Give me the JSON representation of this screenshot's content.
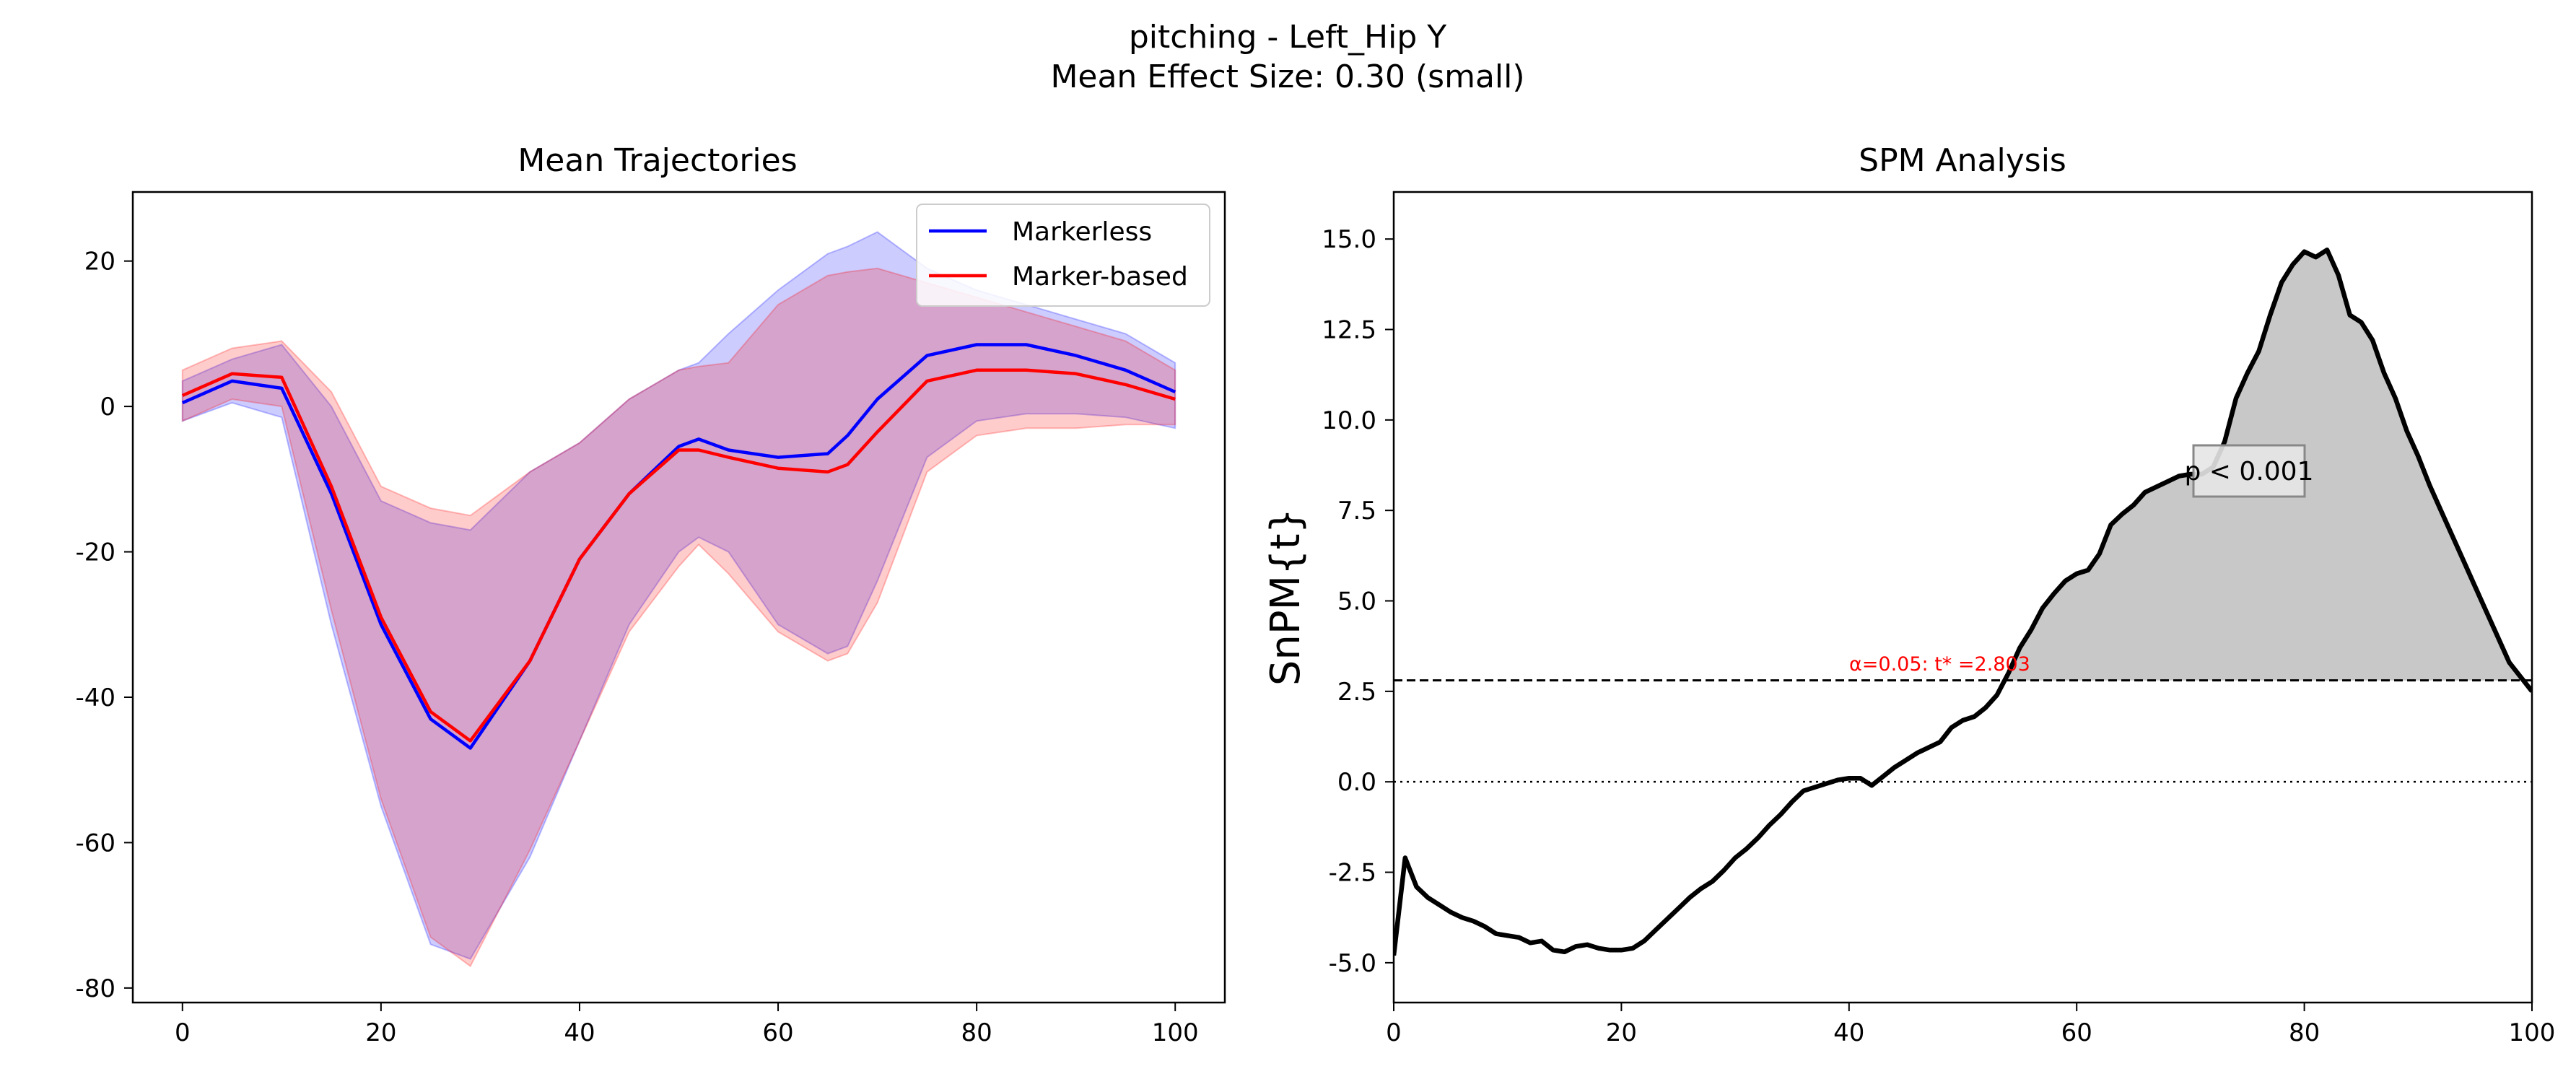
{
  "figure": {
    "suptitle_line1": "pitching - Left_Hip Y",
    "suptitle_line2": "Mean Effect Size: 0.30 (small)"
  },
  "chart_data": [
    {
      "type": "line",
      "title": "Mean Trajectories",
      "xlabel": "",
      "ylabel": "",
      "xlim": [
        -5,
        105
      ],
      "ylim": [
        -82,
        29.5
      ],
      "xticks": [
        0,
        20,
        40,
        60,
        80,
        100
      ],
      "yticks": [
        -80,
        -60,
        -40,
        -20,
        0,
        20
      ],
      "grid": false,
      "legend_position": "top-right",
      "x": [
        0,
        5,
        10,
        15,
        20,
        25,
        29,
        35,
        40,
        45,
        50,
        52,
        55,
        60,
        65,
        67,
        70,
        75,
        80,
        85,
        90,
        95,
        100
      ],
      "series": [
        {
          "name": "Markerless",
          "color": "#0000ff",
          "values": [
            0.5,
            3.5,
            2.5,
            -12,
            -30,
            -43,
            -47,
            -35,
            -21,
            -12,
            -5.5,
            -4.5,
            -6,
            -7,
            -6.5,
            -4,
            1,
            7,
            8.5,
            8.5,
            7,
            5,
            2
          ],
          "band_upper": [
            3.5,
            6.5,
            8.5,
            0,
            -13,
            -16,
            -17,
            -9,
            -5,
            1,
            5,
            6,
            10,
            16,
            21,
            22,
            24,
            19,
            16,
            14,
            12,
            10,
            6
          ],
          "band_lower": [
            -2,
            0.5,
            -1.5,
            -30,
            -55,
            -74,
            -76,
            -62,
            -46,
            -30,
            -20,
            -18,
            -20,
            -30,
            -34,
            -33,
            -24,
            -7,
            -2,
            -1,
            -1,
            -1.5,
            -3
          ]
        },
        {
          "name": "Marker-based",
          "color": "#ff0000",
          "values": [
            1.5,
            4.5,
            4,
            -11,
            -29,
            -42,
            -46,
            -35,
            -21,
            -12,
            -6,
            -6,
            -7,
            -8.5,
            -9,
            -8,
            -3.5,
            3.5,
            5,
            5,
            4.5,
            3,
            1
          ],
          "band_upper": [
            5,
            8,
            9,
            2,
            -11,
            -14,
            -15,
            -9,
            -5,
            1,
            5,
            5.5,
            6,
            14,
            18,
            18.5,
            19,
            17,
            15,
            13,
            11,
            9,
            5
          ],
          "band_lower": [
            -2,
            1,
            0,
            -28,
            -54,
            -73,
            -77,
            -61,
            -46,
            -31,
            -22,
            -19,
            -23,
            -31,
            -35,
            -34,
            -27,
            -9,
            -4,
            -3,
            -3,
            -2.5,
            -2.5
          ]
        }
      ]
    },
    {
      "type": "line",
      "title": "SPM Analysis",
      "xlabel": "",
      "ylabel": "SnPM{t}",
      "xlim": [
        0,
        100
      ],
      "ylim": [
        -6.1,
        16.3
      ],
      "xticks": [
        0,
        20,
        40,
        60,
        80,
        100
      ],
      "yticks": [
        -5.0,
        -2.5,
        0.0,
        2.5,
        5.0,
        7.5,
        10.0,
        12.5,
        15.0
      ],
      "grid": false,
      "x": [
        0,
        1,
        2,
        3,
        4,
        5,
        6,
        7,
        8,
        9,
        10,
        11,
        12,
        13,
        14,
        15,
        16,
        17,
        18,
        19,
        20,
        21,
        22,
        23,
        24,
        25,
        26,
        27,
        28,
        29,
        30,
        31,
        32,
        33,
        34,
        35,
        36,
        37,
        38,
        39,
        40,
        41,
        42,
        43,
        44,
        45,
        46,
        47,
        48,
        49,
        50,
        51,
        52,
        53,
        54,
        55,
        56,
        57,
        58,
        59,
        60,
        61,
        62,
        63,
        64,
        65,
        66,
        67,
        68,
        69,
        70,
        71,
        72,
        73,
        74,
        75,
        76,
        77,
        78,
        79,
        80,
        81,
        82,
        83,
        84,
        85,
        86,
        87,
        88,
        89,
        90,
        91,
        92,
        93,
        94,
        95,
        96,
        97,
        98,
        99,
        100
      ],
      "series": [
        {
          "name": "",
          "color": "#000000",
          "values": [
            -4.8,
            -2.1,
            -2.9,
            -3.2,
            -3.4,
            -3.6,
            -3.75,
            -3.85,
            -4.0,
            -4.2,
            -4.25,
            -4.3,
            -4.45,
            -4.4,
            -4.65,
            -4.7,
            -4.55,
            -4.5,
            -4.6,
            -4.65,
            -4.65,
            -4.6,
            -4.4,
            -4.1,
            -3.8,
            -3.5,
            -3.2,
            -2.95,
            -2.75,
            -2.45,
            -2.1,
            -1.85,
            -1.55,
            -1.2,
            -0.9,
            -0.55,
            -0.25,
            -0.15,
            -0.05,
            0.05,
            0.1,
            0.1,
            -0.1,
            0.15,
            0.4,
            0.6,
            0.8,
            0.95,
            1.1,
            1.5,
            1.7,
            1.8,
            2.05,
            2.4,
            3.0,
            3.7,
            4.2,
            4.8,
            5.2,
            5.55,
            5.75,
            5.85,
            6.3,
            7.1,
            7.4,
            7.65,
            8.0,
            8.15,
            8.3,
            8.45,
            8.5,
            8.5,
            8.7,
            9.4,
            10.6,
            11.3,
            11.9,
            12.9,
            13.8,
            14.3,
            14.65,
            14.5,
            14.7,
            14.0,
            12.9,
            12.7,
            12.2,
            11.3,
            10.6,
            9.7,
            9.0,
            8.2,
            7.5,
            6.8,
            6.1,
            5.4,
            4.7,
            4.0,
            3.3,
            2.9,
            2.5
          ]
        }
      ],
      "threshold": 2.803,
      "threshold_label": "α=0.05:  t* =2.803",
      "suprathreshold_fill_color": "#c8c8c8",
      "zero_line": 0,
      "annotation": "p < 0.001"
    }
  ]
}
